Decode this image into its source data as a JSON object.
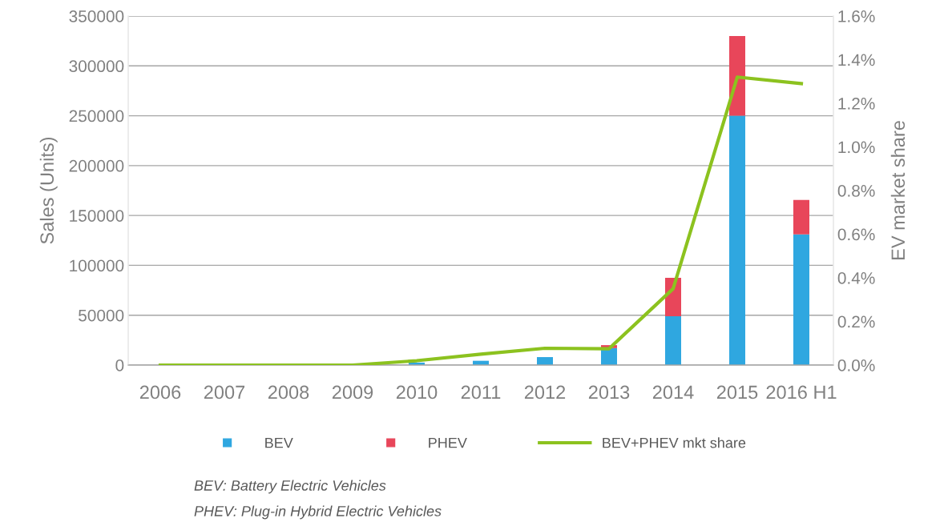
{
  "chart_data": {
    "type": "bar",
    "stacked": true,
    "categories": [
      "2006",
      "2007",
      "2008",
      "2009",
      "2010",
      "2011",
      "2012",
      "2013",
      "2014",
      "2015",
      "2016 H1"
    ],
    "series": [
      {
        "name": "BEV",
        "color": "#2fa7e0",
        "values": [
          0,
          0,
          0,
          0,
          2500,
          4300,
          8000,
          17000,
          49000,
          250000,
          131000
        ]
      },
      {
        "name": "PHEV",
        "color": "#e8465a",
        "values": [
          0,
          0,
          0,
          0,
          0,
          0,
          0,
          3000,
          38500,
          80000,
          34500
        ]
      },
      {
        "name": "BEV+PHEV mkt share",
        "type": "line",
        "axis": "y2",
        "color": "#8cc21f",
        "values": [
          0,
          0,
          0,
          0,
          0.02,
          0.05,
          0.077,
          0.075,
          0.35,
          1.32,
          1.29
        ]
      }
    ],
    "ylabel": "Sales (Units)",
    "y2label": "EV market share",
    "ylim": [
      0,
      350000
    ],
    "yticks": [
      0,
      50000,
      100000,
      150000,
      200000,
      250000,
      300000,
      350000
    ],
    "y2lim": [
      0,
      1.6
    ],
    "y2ticks": [
      {
        "value": 0,
        "label": "0.0%"
      },
      {
        "value": 0.2,
        "label": "0.2%"
      },
      {
        "value": 0.4,
        "label": "0.4%"
      },
      {
        "value": 0.6,
        "label": "0.6%"
      },
      {
        "value": 0.8,
        "label": "0.8%"
      },
      {
        "value": 1.0,
        "label": "1.0%"
      },
      {
        "value": 1.2,
        "label": "1.2%"
      },
      {
        "value": 1.4,
        "label": "1.4%"
      },
      {
        "value": 1.6,
        "label": "1.6%"
      }
    ],
    "grid": "y",
    "legend": "bottom",
    "marker": "none",
    "annotations": [
      "BEV: Battery Electric Vehicles",
      "PHEV: Plug-in Hybrid Electric Vehicles"
    ]
  }
}
